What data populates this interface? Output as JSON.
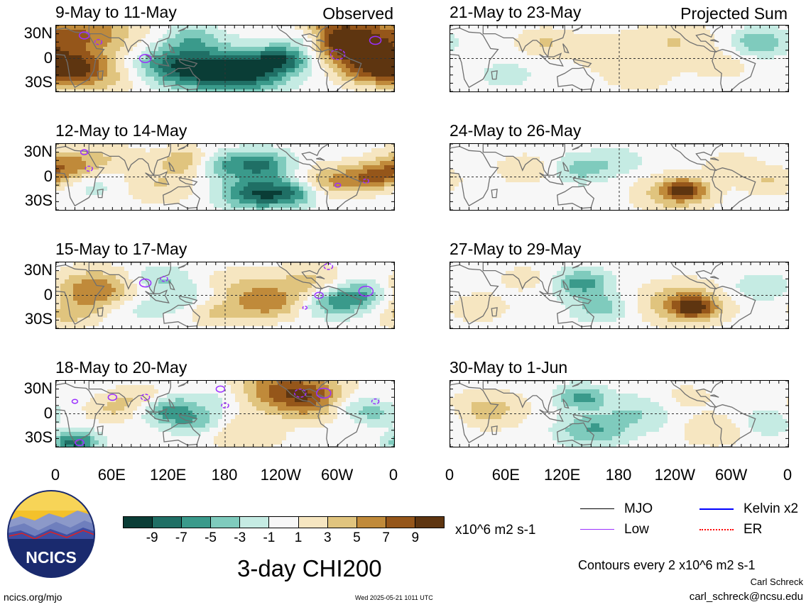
{
  "panels_left": [
    {
      "title": "9-May to 11-May",
      "tag": "Observed"
    },
    {
      "title": "12-May to 14-May",
      "tag": ""
    },
    {
      "title": "15-May to 17-May",
      "tag": ""
    },
    {
      "title": "18-May to 20-May",
      "tag": ""
    }
  ],
  "panels_right": [
    {
      "title": "21-May to 23-May",
      "tag": "Projected Sum"
    },
    {
      "title": "24-May to 26-May",
      "tag": ""
    },
    {
      "title": "27-May to 29-May",
      "tag": ""
    },
    {
      "title": "30-May to 1-Jun",
      "tag": ""
    }
  ],
  "lat_labels": [
    "30N",
    "0",
    "30S"
  ],
  "lon_labels": [
    "0",
    "60E",
    "120E",
    "180",
    "120W",
    "60W",
    "0"
  ],
  "colorbar": {
    "colors": [
      "#0a3d36",
      "#1f6f65",
      "#3a9a8b",
      "#7fcbbd",
      "#c5ebe3",
      "#f7f7f7",
      "#f6e6c1",
      "#e0c47e",
      "#c08a3a",
      "#95561a",
      "#5e3510"
    ],
    "ticks": [
      "-9",
      "-7",
      "-5",
      "-3",
      "-1",
      "1",
      "3",
      "5",
      "7",
      "9"
    ],
    "units": "x10^6 m2 s-1"
  },
  "title": "3-day CHI200",
  "legend": [
    {
      "label": "MJO",
      "color": "#000000",
      "style": "solid"
    },
    {
      "label": "Kelvin x2",
      "color": "#0000ff",
      "style": "solid"
    },
    {
      "label": "Low",
      "color": "#9b30ff",
      "style": "solid"
    },
    {
      "label": "ER",
      "color": "#ff0000",
      "style": "dotted"
    }
  ],
  "contours_note": "Contours every 2 x10^6 m2 s-1",
  "author": "Carl Schreck",
  "email": "carl_schreck@ncsu.edu",
  "site": "ncics.org/mjo",
  "timestamp": "Wed 2025-05-21 1011 UTC",
  "logo": {
    "text": "NCICS"
  },
  "fields": [
    [
      [
        25,
        30,
        7,
        60
      ],
      [
        20,
        -10,
        6,
        35
      ],
      [
        120,
        -5,
        -5,
        40
      ],
      [
        150,
        -15,
        -6,
        45
      ],
      [
        200,
        -15,
        -10,
        45
      ],
      [
        245,
        0,
        -7,
        30
      ],
      [
        270,
        25,
        -5,
        25
      ],
      [
        295,
        30,
        8,
        40
      ],
      [
        320,
        10,
        8,
        40
      ],
      [
        335,
        -15,
        6,
        35
      ],
      [
        145,
        25,
        -4,
        30
      ],
      [
        50,
        -25,
        3,
        40
      ],
      [
        10,
        -20,
        2,
        30
      ]
    ],
    [
      [
        15,
        15,
        6,
        35
      ],
      [
        140,
        20,
        5,
        30
      ],
      [
        175,
        15,
        -5,
        30
      ],
      [
        220,
        15,
        -7,
        30
      ],
      [
        210,
        -20,
        -8,
        35
      ],
      [
        250,
        -20,
        -6,
        30
      ],
      [
        295,
        -5,
        5,
        35
      ],
      [
        340,
        0,
        6,
        30
      ],
      [
        40,
        -10,
        -2,
        30
      ],
      [
        110,
        -10,
        3,
        40
      ],
      [
        65,
        25,
        2,
        30
      ]
    ],
    [
      [
        40,
        5,
        7,
        45
      ],
      [
        10,
        -25,
        3,
        30
      ],
      [
        110,
        20,
        -3,
        30
      ],
      [
        165,
        -20,
        4,
        30
      ],
      [
        190,
        10,
        3,
        40
      ],
      [
        225,
        -10,
        6,
        35
      ],
      [
        270,
        15,
        4,
        40
      ],
      [
        290,
        -10,
        -4,
        30
      ],
      [
        320,
        0,
        -6,
        35
      ],
      [
        80,
        -15,
        -2,
        30
      ],
      [
        140,
        -5,
        -3,
        40
      ]
    ],
    [
      [
        20,
        -35,
        -8,
        25
      ],
      [
        60,
        5,
        3,
        30
      ],
      [
        120,
        5,
        -6,
        30
      ],
      [
        150,
        -10,
        -4,
        30
      ],
      [
        240,
        30,
        7,
        50
      ],
      [
        280,
        15,
        6,
        40
      ],
      [
        310,
        10,
        -4,
        30
      ],
      [
        340,
        0,
        -3,
        25
      ],
      [
        90,
        20,
        3,
        30
      ],
      [
        200,
        -25,
        3,
        40
      ],
      [
        175,
        20,
        -2,
        30
      ]
    ],
    [
      [
        100,
        20,
        3,
        30
      ],
      [
        160,
        10,
        2,
        40
      ],
      [
        240,
        20,
        3,
        45
      ],
      [
        330,
        20,
        -5,
        30
      ],
      [
        60,
        -20,
        -2,
        30
      ],
      [
        200,
        -20,
        2,
        40
      ],
      [
        290,
        -10,
        2,
        30
      ]
    ],
    [
      [
        80,
        10,
        3,
        30
      ],
      [
        140,
        10,
        -4,
        30
      ],
      [
        240,
        -20,
        5,
        40
      ],
      [
        250,
        -15,
        7,
        20
      ],
      [
        300,
        15,
        2,
        30
      ],
      [
        340,
        -5,
        3,
        30
      ],
      [
        180,
        20,
        -2,
        30
      ]
    ],
    [
      [
        140,
        15,
        -6,
        30
      ],
      [
        160,
        -15,
        -4,
        30
      ],
      [
        250,
        -10,
        6,
        45
      ],
      [
        260,
        -15,
        7,
        20
      ],
      [
        330,
        10,
        -3,
        30
      ],
      [
        30,
        -15,
        3,
        30
      ],
      [
        80,
        20,
        2,
        30
      ]
    ],
    [
      [
        40,
        5,
        4,
        40
      ],
      [
        140,
        20,
        -6,
        25
      ],
      [
        150,
        -20,
        -5,
        35
      ],
      [
        200,
        0,
        -3,
        40
      ],
      [
        280,
        -20,
        3,
        35
      ],
      [
        250,
        20,
        2,
        30
      ],
      [
        340,
        -10,
        -3,
        30
      ]
    ]
  ],
  "low_contours": [
    [
      [
        30,
        28,
        7
      ],
      [
        45,
        20,
        5
      ],
      [
        95,
        0,
        8
      ],
      [
        300,
        5,
        10
      ],
      [
        340,
        22,
        8
      ]
    ],
    [
      [
        30,
        30,
        5
      ],
      [
        35,
        10,
        5
      ],
      [
        300,
        -10,
        4
      ],
      [
        330,
        -5,
        4
      ]
    ],
    [
      [
        95,
        15,
        8
      ],
      [
        115,
        20,
        5
      ],
      [
        280,
        0,
        6
      ],
      [
        265,
        -15,
        3
      ],
      [
        330,
        5,
        10
      ],
      [
        290,
        35,
        6
      ]
    ],
    [
      [
        60,
        20,
        6
      ],
      [
        95,
        20,
        6
      ],
      [
        20,
        15,
        4
      ],
      [
        180,
        10,
        5
      ],
      [
        175,
        30,
        6
      ],
      [
        260,
        25,
        8
      ],
      [
        285,
        25,
        10
      ],
      [
        340,
        15,
        5
      ],
      [
        25,
        -35,
        6
      ]
    ]
  ]
}
